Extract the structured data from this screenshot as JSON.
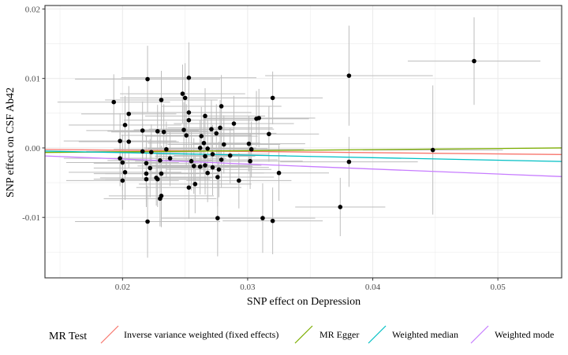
{
  "chart_data": {
    "type": "scatter",
    "xlabel": "SNP effect on Depression",
    "ylabel": "SNP effect on CSF Ab42",
    "xlim": [
      0.0138,
      0.0551
    ],
    "ylim": [
      -0.0187,
      0.0205
    ],
    "x_ticks": [
      0.02,
      0.03,
      0.04,
      0.05
    ],
    "x_tick_labels": [
      "0.02",
      "0.03",
      "0.04",
      "0.05"
    ],
    "y_ticks": [
      -0.01,
      0.0,
      0.01,
      0.02
    ],
    "y_tick_labels": [
      "-0.01",
      "0.00",
      "0.01",
      "0.02"
    ],
    "grid": true,
    "legend": {
      "title": "MR Test",
      "position": "bottom",
      "entries": [
        {
          "name": "Inverse variance weighted (fixed effects)",
          "color": "#F8766D"
        },
        {
          "name": "MR Egger",
          "color": "#7CAE00"
        },
        {
          "name": "Weighted median",
          "color": "#00BFC4"
        },
        {
          "name": "Weighted mode",
          "color": "#C77CFF"
        }
      ]
    },
    "lines": [
      {
        "name": "Inverse variance weighted (fixed effects)",
        "color": "#F8766D",
        "x": [
          0.0138,
          0.0551
        ],
        "y": [
          -0.00022,
          -0.00095
        ]
      },
      {
        "name": "MR Egger",
        "color": "#7CAE00",
        "x": [
          0.0138,
          0.0551
        ],
        "y": [
          -0.00065,
          0.0
        ]
      },
      {
        "name": "Weighted median",
        "color": "#00BFC4",
        "x": [
          0.0138,
          0.0551
        ],
        "y": [
          -0.00045,
          -0.00195
        ]
      },
      {
        "name": "Weighted mode",
        "color": "#C77CFF",
        "x": [
          0.0138,
          0.0551
        ],
        "y": [
          -0.00115,
          -0.00412
        ]
      }
    ],
    "points": [
      {
        "x": 0.0481,
        "y": 0.0125,
        "xerr": 0.0053,
        "yerr": 0.0063
      },
      {
        "x": 0.0448,
        "y": -0.0003,
        "xerr": 0.0056,
        "yerr": 0.0093
      },
      {
        "x": 0.0381,
        "y": 0.0104,
        "xerr": 0.0067,
        "yerr": 0.0072
      },
      {
        "x": 0.0381,
        "y": -0.002,
        "xerr": 0.0055,
        "yerr": 0.0036
      },
      {
        "x": 0.0374,
        "y": -0.0085,
        "xerr": 0.0036,
        "yerr": 0.0042
      },
      {
        "x": 0.022,
        "y": 0.0099,
        "xerr": 0.0058,
        "yerr": 0.0048
      },
      {
        "x": 0.0253,
        "y": 0.0101,
        "xerr": 0.0054,
        "yerr": 0.0051
      },
      {
        "x": 0.0193,
        "y": 0.0066,
        "xerr": 0.0045,
        "yerr": 0.004
      },
      {
        "x": 0.0248,
        "y": 0.0078,
        "xerr": 0.005,
        "yerr": 0.0042
      },
      {
        "x": 0.025,
        "y": 0.0072,
        "xerr": 0.0052,
        "yerr": 0.005
      },
      {
        "x": 0.0231,
        "y": 0.0069,
        "xerr": 0.0045,
        "yerr": 0.0042
      },
      {
        "x": 0.032,
        "y": 0.0072,
        "xerr": 0.004,
        "yerr": 0.0038
      },
      {
        "x": 0.0279,
        "y": 0.006,
        "xerr": 0.0048,
        "yerr": 0.0045
      },
      {
        "x": 0.0205,
        "y": 0.0049,
        "xerr": 0.0038,
        "yerr": 0.004
      },
      {
        "x": 0.0253,
        "y": 0.0051,
        "xerr": 0.005,
        "yerr": 0.0045
      },
      {
        "x": 0.0266,
        "y": 0.0046,
        "xerr": 0.0048,
        "yerr": 0.004
      },
      {
        "x": 0.0307,
        "y": 0.0042,
        "xerr": 0.0042,
        "yerr": 0.004
      },
      {
        "x": 0.0309,
        "y": 0.0043,
        "xerr": 0.0045,
        "yerr": 0.0042
      },
      {
        "x": 0.0253,
        "y": 0.004,
        "xerr": 0.0052,
        "yerr": 0.0045
      },
      {
        "x": 0.0289,
        "y": 0.0035,
        "xerr": 0.0048,
        "yerr": 0.004
      },
      {
        "x": 0.0202,
        "y": 0.0033,
        "xerr": 0.0045,
        "yerr": 0.0042
      },
      {
        "x": 0.0271,
        "y": 0.0027,
        "xerr": 0.005,
        "yerr": 0.0042
      },
      {
        "x": 0.0278,
        "y": 0.0029,
        "xerr": 0.0042,
        "yerr": 0.004
      },
      {
        "x": 0.0216,
        "y": 0.0025,
        "xerr": 0.0045,
        "yerr": 0.0042
      },
      {
        "x": 0.0228,
        "y": 0.0024,
        "xerr": 0.004,
        "yerr": 0.0038
      },
      {
        "x": 0.0233,
        "y": 0.0023,
        "xerr": 0.0042,
        "yerr": 0.004
      },
      {
        "x": 0.0249,
        "y": 0.0026,
        "xerr": 0.004,
        "yerr": 0.004
      },
      {
        "x": 0.0275,
        "y": 0.0021,
        "xerr": 0.0048,
        "yerr": 0.0042
      },
      {
        "x": 0.0317,
        "y": 0.002,
        "xerr": 0.004,
        "yerr": 0.004
      },
      {
        "x": 0.0251,
        "y": 0.0018,
        "xerr": 0.0052,
        "yerr": 0.0045
      },
      {
        "x": 0.0263,
        "y": 0.0017,
        "xerr": 0.0045,
        "yerr": 0.0042
      },
      {
        "x": 0.0198,
        "y": 0.001,
        "xerr": 0.0045,
        "yerr": 0.004
      },
      {
        "x": 0.0205,
        "y": 0.0009,
        "xerr": 0.004,
        "yerr": 0.0038
      },
      {
        "x": 0.0265,
        "y": 0.0007,
        "xerr": 0.0045,
        "yerr": 0.0042
      },
      {
        "x": 0.0281,
        "y": 0.0005,
        "xerr": 0.0045,
        "yerr": 0.0042
      },
      {
        "x": 0.0301,
        "y": 0.0006,
        "xerr": 0.0045,
        "yerr": 0.004
      },
      {
        "x": 0.0235,
        "y": -0.0002,
        "xerr": 0.0042,
        "yerr": 0.004
      },
      {
        "x": 0.0262,
        "y": 0.0,
        "xerr": 0.0045,
        "yerr": 0.004
      },
      {
        "x": 0.0268,
        "y": -0.0001,
        "xerr": 0.0048,
        "yerr": 0.0042
      },
      {
        "x": 0.0303,
        "y": -0.0002,
        "xerr": 0.0042,
        "yerr": 0.004
      },
      {
        "x": 0.0216,
        "y": -0.0005,
        "xerr": 0.0045,
        "yerr": 0.004
      },
      {
        "x": 0.0223,
        "y": -0.0006,
        "xerr": 0.0042,
        "yerr": 0.004
      },
      {
        "x": 0.0272,
        "y": -0.0009,
        "xerr": 0.0045,
        "yerr": 0.0042
      },
      {
        "x": 0.0286,
        "y": -0.0011,
        "xerr": 0.0045,
        "yerr": 0.004
      },
      {
        "x": 0.0198,
        "y": -0.0015,
        "xerr": 0.0045,
        "yerr": 0.004
      },
      {
        "x": 0.023,
        "y": -0.0018,
        "xerr": 0.0042,
        "yerr": 0.004
      },
      {
        "x": 0.0238,
        "y": -0.0015,
        "xerr": 0.0045,
        "yerr": 0.004
      },
      {
        "x": 0.0255,
        "y": -0.0019,
        "xerr": 0.0045,
        "yerr": 0.0042
      },
      {
        "x": 0.0266,
        "y": -0.0012,
        "xerr": 0.004,
        "yerr": 0.004
      },
      {
        "x": 0.0279,
        "y": -0.0017,
        "xerr": 0.0045,
        "yerr": 0.004
      },
      {
        "x": 0.0302,
        "y": -0.0019,
        "xerr": 0.0042,
        "yerr": 0.004
      },
      {
        "x": 0.02,
        "y": -0.0021,
        "xerr": 0.0045,
        "yerr": 0.004
      },
      {
        "x": 0.0219,
        "y": -0.0022,
        "xerr": 0.0042,
        "yerr": 0.004
      },
      {
        "x": 0.0257,
        "y": -0.0026,
        "xerr": 0.0045,
        "yerr": 0.004
      },
      {
        "x": 0.0262,
        "y": -0.0027,
        "xerr": 0.0042,
        "yerr": 0.004
      },
      {
        "x": 0.0266,
        "y": -0.0025,
        "xerr": 0.0045,
        "yerr": 0.0042
      },
      {
        "x": 0.0272,
        "y": -0.0028,
        "xerr": 0.0045,
        "yerr": 0.004
      },
      {
        "x": 0.0277,
        "y": -0.0031,
        "xerr": 0.0042,
        "yerr": 0.004
      },
      {
        "x": 0.0222,
        "y": -0.0029,
        "xerr": 0.0045,
        "yerr": 0.0042
      },
      {
        "x": 0.0202,
        "y": -0.0035,
        "xerr": 0.0045,
        "yerr": 0.004
      },
      {
        "x": 0.0219,
        "y": -0.0037,
        "xerr": 0.0042,
        "yerr": 0.004
      },
      {
        "x": 0.0231,
        "y": -0.0037,
        "xerr": 0.0045,
        "yerr": 0.004
      },
      {
        "x": 0.0268,
        "y": -0.0036,
        "xerr": 0.0045,
        "yerr": 0.0042
      },
      {
        "x": 0.0325,
        "y": -0.0036,
        "xerr": 0.004,
        "yerr": 0.004
      },
      {
        "x": 0.0227,
        "y": -0.0043,
        "xerr": 0.0045,
        "yerr": 0.004
      },
      {
        "x": 0.0228,
        "y": -0.0045,
        "xerr": 0.0042,
        "yerr": 0.004
      },
      {
        "x": 0.0276,
        "y": -0.0042,
        "xerr": 0.0045,
        "yerr": 0.0042
      },
      {
        "x": 0.0293,
        "y": -0.0047,
        "xerr": 0.0042,
        "yerr": 0.004
      },
      {
        "x": 0.02,
        "y": -0.0047,
        "xerr": 0.0045,
        "yerr": 0.0042
      },
      {
        "x": 0.0219,
        "y": -0.0045,
        "xerr": 0.0042,
        "yerr": 0.004
      },
      {
        "x": 0.0258,
        "y": -0.0052,
        "xerr": 0.0045,
        "yerr": 0.0042
      },
      {
        "x": 0.0253,
        "y": -0.0057,
        "xerr": 0.0042,
        "yerr": 0.0045
      },
      {
        "x": 0.0231,
        "y": -0.0069,
        "xerr": 0.0042,
        "yerr": 0.0045
      },
      {
        "x": 0.023,
        "y": -0.0073,
        "xerr": 0.0045,
        "yerr": 0.004
      },
      {
        "x": 0.0276,
        "y": -0.0101,
        "xerr": 0.0045,
        "yerr": 0.0055
      },
      {
        "x": 0.0312,
        "y": -0.0101,
        "xerr": 0.0042,
        "yerr": 0.005
      },
      {
        "x": 0.032,
        "y": -0.0105,
        "xerr": 0.004,
        "yerr": 0.0048
      },
      {
        "x": 0.022,
        "y": -0.0106,
        "xerr": 0.0058,
        "yerr": 0.0052
      }
    ]
  }
}
